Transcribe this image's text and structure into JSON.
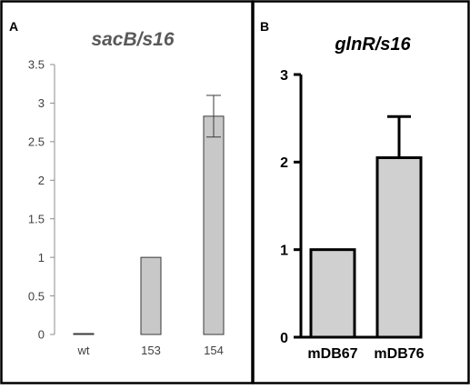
{
  "panels": [
    {
      "label": "A",
      "title": "sacB/s16",
      "style": "light",
      "chart_data": {
        "type": "bar",
        "title": "sacB/s16",
        "xlabel": "",
        "ylabel": "",
        "categories": [
          "wt",
          "153",
          "154"
        ],
        "values": [
          0.01,
          1,
          2.83
        ],
        "errors": [
          null,
          null,
          0.27
        ],
        "ylim": [
          0,
          3.5
        ],
        "yticks": [
          "0",
          "0.5",
          "1",
          "1.5",
          "2",
          "2.5",
          "3",
          "3.5"
        ],
        "grid": false,
        "bar_color": "#c8c8c8",
        "edge_color": "#3a3a3a"
      }
    },
    {
      "label": "B",
      "title": "glnR/s16",
      "style": "bold",
      "chart_data": {
        "type": "bar",
        "title": "glnR/s16",
        "xlabel": "",
        "ylabel": "",
        "categories": [
          "mDB67",
          "mDB76"
        ],
        "values": [
          1,
          2.05
        ],
        "errors": [
          null,
          0.47
        ],
        "ylim": [
          0,
          3
        ],
        "yticks": [
          "0",
          "1",
          "2",
          "3"
        ],
        "grid": false,
        "bar_color": "#d0d0d0",
        "edge_color": "#000000"
      }
    }
  ],
  "colors": {
    "frame": "#000000",
    "axis_light": "#8c8c8c",
    "tick_text_light": "#404040",
    "title_light": "#595959",
    "text_bold": "#000000"
  }
}
